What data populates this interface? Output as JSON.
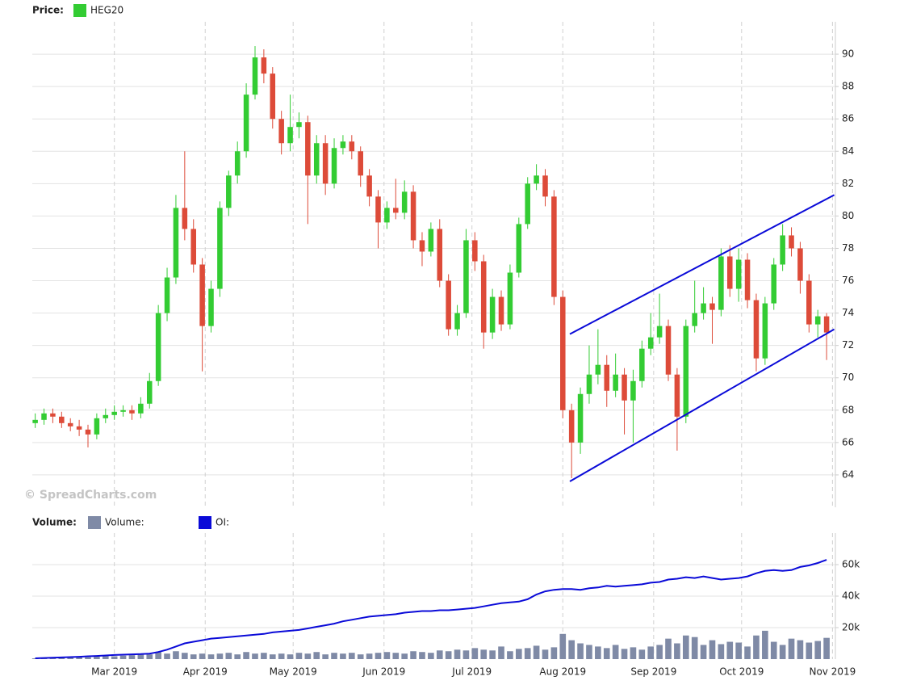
{
  "chart_data": [
    {
      "type": "candlestick",
      "legend_label": "Price:",
      "watermark": "© SpreadCharts.com",
      "x": [
        1,
        4,
        7,
        10,
        13,
        16,
        19,
        22,
        25,
        28,
        31,
        34,
        37,
        40,
        43,
        46,
        49,
        52,
        55,
        58,
        61,
        64,
        67,
        70,
        73,
        76,
        79,
        82,
        85,
        88,
        91,
        94,
        97,
        100,
        103,
        106,
        109,
        112,
        115,
        118,
        121,
        124,
        127,
        130,
        133,
        136,
        139,
        142,
        145,
        148,
        151,
        154,
        157,
        160,
        163,
        166,
        169,
        172,
        175,
        178,
        181,
        184,
        187,
        190,
        193,
        196,
        199,
        202,
        205,
        208,
        211,
        214,
        217,
        220,
        223,
        226,
        229,
        232,
        235,
        238,
        241,
        244,
        247,
        250,
        253,
        256,
        259,
        262,
        265,
        268,
        271
      ],
      "series": [
        {
          "name": "HEG20",
          "color": "#33cc33",
          "up_color": "#33cc33",
          "down_color": "#dd4b39",
          "open": [
            67.2,
            67.4,
            67.8,
            67.6,
            67.2,
            67.0,
            66.8,
            66.5,
            67.5,
            67.7,
            67.9,
            68.0,
            67.8,
            68.4,
            69.8,
            74.0,
            76.2,
            80.5,
            79.2,
            77.0,
            73.2,
            75.5,
            80.5,
            82.5,
            84.0,
            87.5,
            89.8,
            88.8,
            86.0,
            84.5,
            85.5,
            85.8,
            82.5,
            84.5,
            82.0,
            84.2,
            84.6,
            84.0,
            82.5,
            81.2,
            79.6,
            80.5,
            80.2,
            81.5,
            78.5,
            77.8,
            79.2,
            76.0,
            73.0,
            74.0,
            78.5,
            77.2,
            72.8,
            75.0,
            73.3,
            76.5,
            79.5,
            82.0,
            82.5,
            81.2,
            75.0,
            68.0,
            66.0,
            69.0,
            70.2,
            70.8,
            69.2,
            70.2,
            68.6,
            69.8,
            71.8,
            72.5,
            73.2,
            70.2,
            67.6,
            73.2,
            74.0,
            74.6,
            74.2,
            77.5,
            75.5,
            77.3,
            74.8,
            71.2,
            74.6,
            77.0,
            78.8,
            78.0,
            76.0,
            73.3,
            73.8
          ],
          "high": [
            67.8,
            68.1,
            68.1,
            67.9,
            67.5,
            67.4,
            67.1,
            67.8,
            68.1,
            68.3,
            68.3,
            68.3,
            68.8,
            70.3,
            74.5,
            76.8,
            81.3,
            84.0,
            79.8,
            77.4,
            76.0,
            80.9,
            82.8,
            84.6,
            88.2,
            90.5,
            90.3,
            89.2,
            86.5,
            87.5,
            86.4,
            86.2,
            85.0,
            85.0,
            84.8,
            85.0,
            85.0,
            84.3,
            82.9,
            81.6,
            80.9,
            82.3,
            82.2,
            81.9,
            79.0,
            79.6,
            79.8,
            76.4,
            74.5,
            79.2,
            79.0,
            77.6,
            75.5,
            75.4,
            77.0,
            79.9,
            82.4,
            83.2,
            82.9,
            81.6,
            75.4,
            68.4,
            69.4,
            72.0,
            73.0,
            71.4,
            71.5,
            70.6,
            70.5,
            72.3,
            74.0,
            75.2,
            73.6,
            70.6,
            73.6,
            76.0,
            75.6,
            75.0,
            78.0,
            78.2,
            78.0,
            77.7,
            75.2,
            75.0,
            77.4,
            79.5,
            79.3,
            78.4,
            76.4,
            74.2,
            74.0
          ],
          "low": [
            66.9,
            67.1,
            67.2,
            66.9,
            66.7,
            66.4,
            65.7,
            66.2,
            67.2,
            67.4,
            67.6,
            67.4,
            67.5,
            68.1,
            69.5,
            73.5,
            75.8,
            78.5,
            76.5,
            70.4,
            72.8,
            75.0,
            80.0,
            82.0,
            83.6,
            87.2,
            88.2,
            85.4,
            83.8,
            84.0,
            84.8,
            79.5,
            82.0,
            81.3,
            81.7,
            83.8,
            83.5,
            81.8,
            80.6,
            78.0,
            79.2,
            79.8,
            79.8,
            78.0,
            76.9,
            77.5,
            75.6,
            72.6,
            72.6,
            73.7,
            76.6,
            71.8,
            72.4,
            72.9,
            73.0,
            76.2,
            79.2,
            81.6,
            80.6,
            74.5,
            67.5,
            63.8,
            65.3,
            68.4,
            69.6,
            68.2,
            68.8,
            66.5,
            66.0,
            69.4,
            71.4,
            72.1,
            69.8,
            65.5,
            67.2,
            72.8,
            73.6,
            72.1,
            73.8,
            75.0,
            74.7,
            74.3,
            70.4,
            70.8,
            74.2,
            76.6,
            77.5,
            75.2,
            72.8,
            72.5,
            71.1
          ],
          "close": [
            67.4,
            67.8,
            67.6,
            67.2,
            67.0,
            66.8,
            66.5,
            67.5,
            67.7,
            67.9,
            68.0,
            67.8,
            68.4,
            69.8,
            74.0,
            76.2,
            80.5,
            79.2,
            77.0,
            73.2,
            75.5,
            80.5,
            82.5,
            84.0,
            87.5,
            89.8,
            88.8,
            86.0,
            84.5,
            85.5,
            85.8,
            82.5,
            84.5,
            82.0,
            84.2,
            84.6,
            84.0,
            82.5,
            81.2,
            79.6,
            80.5,
            80.2,
            81.5,
            78.5,
            77.8,
            79.2,
            76.0,
            73.0,
            74.0,
            78.5,
            77.2,
            72.8,
            75.0,
            73.3,
            76.5,
            79.5,
            82.0,
            82.5,
            81.2,
            75.0,
            68.0,
            66.0,
            69.0,
            70.2,
            70.8,
            69.2,
            70.2,
            68.6,
            69.8,
            71.8,
            72.5,
            73.2,
            70.2,
            67.6,
            73.2,
            74.0,
            74.6,
            74.2,
            77.5,
            75.5,
            77.3,
            74.8,
            71.2,
            74.6,
            77.0,
            78.8,
            78.0,
            76.0,
            73.3,
            73.8,
            72.8
          ]
        }
      ],
      "lines": [
        {
          "x": [
            183.4,
            273.6
          ],
          "y": [
            72.7,
            81.3
          ]
        },
        {
          "x": [
            183.4,
            273.6
          ],
          "y": [
            63.6,
            73.0
          ]
        }
      ],
      "line_color": "#0a0ad8",
      "xlim": [
        0,
        274
      ],
      "ylim": [
        62,
        92
      ],
      "yticks": [
        64,
        66,
        68,
        70,
        72,
        74,
        76,
        78,
        80,
        82,
        84,
        86,
        88,
        90
      ],
      "grid": true
    },
    {
      "type": "bar",
      "legend_label": "Volume:",
      "x": [
        1,
        4,
        7,
        10,
        13,
        16,
        19,
        22,
        25,
        28,
        31,
        34,
        37,
        40,
        43,
        46,
        49,
        52,
        55,
        58,
        61,
        64,
        67,
        70,
        73,
        76,
        79,
        82,
        85,
        88,
        91,
        94,
        97,
        100,
        103,
        106,
        109,
        112,
        115,
        118,
        121,
        124,
        127,
        130,
        133,
        136,
        139,
        142,
        145,
        148,
        151,
        154,
        157,
        160,
        163,
        166,
        169,
        172,
        175,
        178,
        181,
        184,
        187,
        190,
        193,
        196,
        199,
        202,
        205,
        208,
        211,
        214,
        217,
        220,
        223,
        226,
        229,
        232,
        235,
        238,
        241,
        244,
        247,
        250,
        253,
        256,
        259,
        262,
        265,
        268,
        271
      ],
      "series": [
        {
          "name": "Volume:",
          "color": "#7f8aa6",
          "values": [
            500,
            800,
            1000,
            1200,
            1000,
            1500,
            1200,
            1500,
            2000,
            1800,
            2200,
            2500,
            2800,
            3000,
            4500,
            3500,
            5000,
            4000,
            3000,
            3500,
            3000,
            3500,
            4000,
            3000,
            4500,
            3500,
            4000,
            3000,
            3500,
            3000,
            4000,
            3500,
            4500,
            3000,
            4000,
            3500,
            4000,
            3000,
            3500,
            4000,
            4500,
            4000,
            3500,
            5000,
            4500,
            4000,
            5500,
            5000,
            6000,
            5500,
            7000,
            6000,
            5500,
            8000,
            5000,
            6500,
            7000,
            8500,
            6000,
            7500,
            16000,
            12000,
            10000,
            9000,
            8000,
            7000,
            9000,
            6500,
            7500,
            6000,
            8000,
            9000,
            13000,
            10000,
            15000,
            14000,
            9000,
            12000,
            9500,
            11000,
            10500,
            8000,
            15000,
            18000,
            11000,
            9000,
            13000,
            12000,
            10500,
            11500,
            13500
          ]
        },
        {
          "name": "OI:",
          "color": "#0a0ad8",
          "type": "line",
          "values": [
            500,
            700,
            900,
            1100,
            1300,
            1500,
            1800,
            2000,
            2300,
            2600,
            2800,
            3000,
            3200,
            3500,
            4500,
            6000,
            8000,
            10000,
            11000,
            12000,
            13000,
            13500,
            14000,
            14500,
            15000,
            15500,
            16000,
            17000,
            17500,
            18000,
            18500,
            19500,
            20500,
            21500,
            22500,
            24000,
            25000,
            26000,
            27000,
            27500,
            28000,
            28500,
            29500,
            30000,
            30500,
            30500,
            31000,
            31000,
            31500,
            32000,
            32500,
            33500,
            34500,
            35500,
            36000,
            36500,
            38000,
            41000,
            43000,
            44000,
            44500,
            44500,
            44000,
            45000,
            45500,
            46500,
            46000,
            46500,
            47000,
            47500,
            48500,
            49000,
            50500,
            51000,
            52000,
            51500,
            52500,
            51500,
            50500,
            51000,
            51500,
            52500,
            54500,
            56000,
            56500,
            56000,
            56500,
            58500,
            59500,
            61000,
            63000
          ]
        }
      ],
      "xlim": [
        0,
        274
      ],
      "xticks": [
        {
          "value": 28,
          "label": "Mar 2019"
        },
        {
          "value": 59,
          "label": "Apr 2019"
        },
        {
          "value": 89,
          "label": "May 2019"
        },
        {
          "value": 120,
          "label": "Jun 2019"
        },
        {
          "value": 150,
          "label": "Jul 2019"
        },
        {
          "value": 181,
          "label": "Aug 2019"
        },
        {
          "value": 212,
          "label": "Sep 2019"
        },
        {
          "value": 242,
          "label": "Oct 2019"
        },
        {
          "value": 273,
          "label": "Nov 2019"
        }
      ],
      "ylim": [
        0,
        80000
      ],
      "yticks": [
        {
          "value": 20000,
          "label": "20k"
        },
        {
          "value": 40000,
          "label": "40k"
        },
        {
          "value": 60000,
          "label": "60k"
        }
      ],
      "grid": true
    }
  ]
}
